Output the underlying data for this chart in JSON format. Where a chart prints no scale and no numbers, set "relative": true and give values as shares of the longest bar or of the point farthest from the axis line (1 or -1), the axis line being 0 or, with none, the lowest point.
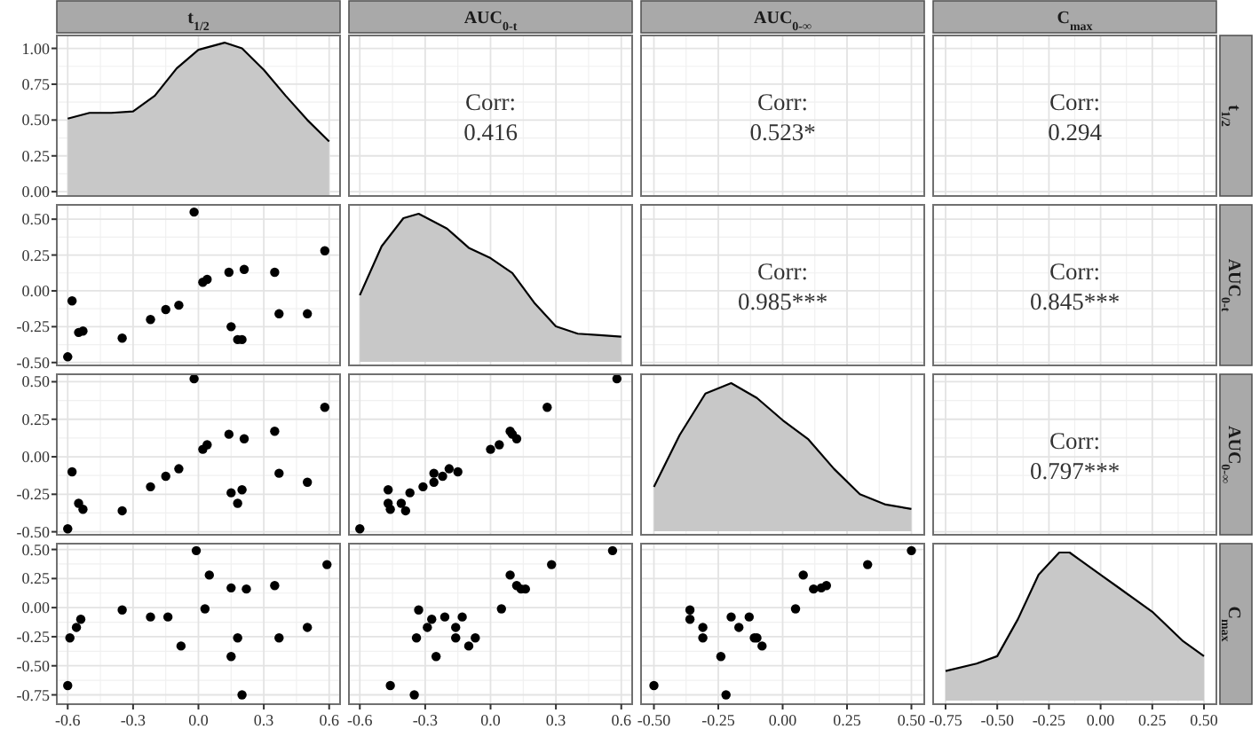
{
  "chart_data": [
    {
      "type": "area",
      "title": "t$_{1/2}$",
      "xlim": [
        -0.65,
        0.65
      ],
      "ylim": [
        -0.03,
        1.09
      ],
      "xticks": [
        -0.6,
        -0.3,
        0,
        0.3,
        0.6
      ],
      "yticks": [
        {
          "value": 0,
          "label": "0.00"
        },
        0.25,
        {
          "value": 0.5,
          "label": "0.50"
        },
        0.75,
        {
          "value": 1,
          "label": "1.00"
        }
      ],
      "tick_labels": "y",
      "grid": true,
      "series": [
        {
          "color": "#c8c8c8",
          "x": [
            -0.6,
            -0.5,
            -0.4,
            -0.3,
            -0.2,
            -0.1,
            0,
            0.12,
            0.2,
            0.3,
            0.4,
            0.5,
            0.6
          ],
          "values": [
            0.51,
            0.55,
            0.55,
            0.56,
            0.67,
            0.86,
            0.99,
            1.04,
            1.0,
            0.85,
            0.67,
            0.5,
            0.35
          ]
        }
      ]
    },
    {
      "type": "other",
      "title": "AUC$_{0-t}$",
      "annotations": [
        "Corr:",
        "0.416"
      ]
    },
    {
      "type": "other",
      "title": "AUC$_{0-∞}$",
      "annotations": [
        "Corr:",
        "0.523*"
      ]
    },
    {
      "type": "other",
      "title": "C$_{max}$",
      "y2label": "t$_{1/2}$",
      "annotations": [
        "Corr:",
        "0.294"
      ]
    },
    {
      "type": "scatter",
      "marker": "circle",
      "xlim": [
        -0.65,
        0.65
      ],
      "ylim": [
        -0.52,
        0.6
      ],
      "xticks": [
        -0.6,
        -0.3,
        0,
        0.3,
        0.6
      ],
      "yticks": [
        {
          "value": -0.5,
          "label": "-0.50"
        },
        -0.25,
        {
          "value": 0,
          "label": "0.00"
        },
        0.25,
        {
          "value": 0.5,
          "label": "0.50"
        }
      ],
      "tick_labels": "y",
      "grid": true,
      "series": [
        {
          "color": "#000000",
          "x": [
            -0.6,
            -0.58,
            -0.55,
            -0.53,
            -0.35,
            -0.22,
            -0.15,
            -0.09,
            -0.02,
            0.02,
            0.04,
            0.14,
            0.15,
            0.18,
            0.2,
            0.21,
            0.35,
            0.37,
            0.5,
            0.58
          ],
          "values": [
            -0.46,
            -0.07,
            -0.29,
            -0.28,
            -0.33,
            -0.2,
            -0.13,
            -0.1,
            0.55,
            0.06,
            0.08,
            0.13,
            -0.25,
            -0.34,
            -0.34,
            0.15,
            0.13,
            -0.16,
            -0.16,
            0.28
          ]
        }
      ]
    },
    {
      "type": "area",
      "relative": true,
      "xlim": [
        -0.65,
        0.65
      ],
      "xticks": [
        -0.6,
        -0.3,
        0,
        0.3,
        0.6
      ],
      "tick_labels": false,
      "grid": "x",
      "series": [
        {
          "color": "#c8c8c8",
          "x": [
            -0.6,
            -0.5,
            -0.4,
            -0.33,
            -0.2,
            -0.1,
            0,
            0.1,
            0.2,
            0.3,
            0.4,
            0.5,
            0.6
          ],
          "values": [
            0.45,
            0.78,
            0.97,
            1,
            0.9,
            0.77,
            0.7,
            0.6,
            0.4,
            0.24,
            0.19,
            0.18,
            0.17
          ]
        }
      ]
    },
    {
      "type": "other",
      "annotations": [
        "Corr:",
        "0.985***"
      ]
    },
    {
      "type": "other",
      "y2label": "AUC$_{0-t}$",
      "annotations": [
        "Corr:",
        "0.845***"
      ]
    },
    {
      "type": "scatter",
      "marker": "circle",
      "xlim": [
        -0.65,
        0.65
      ],
      "ylim": [
        -0.52,
        0.55
      ],
      "xticks": [
        -0.6,
        -0.3,
        0,
        0.3,
        0.6
      ],
      "yticks": [
        {
          "value": -0.5,
          "label": "-0.50"
        },
        -0.25,
        {
          "value": 0,
          "label": "0.00"
        },
        0.25,
        {
          "value": 0.5,
          "label": "0.50"
        }
      ],
      "tick_labels": "y",
      "grid": true,
      "series": [
        {
          "color": "#000000",
          "x": [
            -0.6,
            -0.58,
            -0.55,
            -0.53,
            -0.35,
            -0.22,
            -0.15,
            -0.09,
            -0.02,
            0.02,
            0.04,
            0.14,
            0.15,
            0.18,
            0.2,
            0.21,
            0.35,
            0.37,
            0.5,
            0.58
          ],
          "values": [
            -0.48,
            -0.1,
            -0.31,
            -0.35,
            -0.36,
            -0.2,
            -0.13,
            -0.08,
            0.52,
            0.05,
            0.08,
            0.15,
            -0.24,
            -0.31,
            -0.22,
            0.12,
            0.17,
            -0.11,
            -0.17,
            0.33
          ]
        }
      ]
    },
    {
      "type": "scatter",
      "marker": "circle",
      "xlim": [
        -0.65,
        0.65
      ],
      "ylim": [
        -0.52,
        0.55
      ],
      "xticks": [
        -0.6,
        -0.3,
        0,
        0.3,
        0.6
      ],
      "yticks": [
        -0.5,
        -0.25,
        0,
        0.25,
        0.5
      ],
      "tick_labels": false,
      "grid": true,
      "series": [
        {
          "color": "#000000",
          "x": [
            0.58,
            0.26,
            0,
            0.04,
            0.09,
            0.1,
            0.12,
            -0.15,
            -0.19,
            -0.22,
            -0.26,
            -0.26,
            -0.31,
            -0.37,
            -0.47,
            -0.47,
            -0.46,
            -0.41,
            -0.39,
            -0.6
          ],
          "values": [
            0.52,
            0.33,
            0.05,
            0.08,
            0.17,
            0.15,
            0.12,
            -0.1,
            -0.08,
            -0.13,
            -0.11,
            -0.17,
            -0.2,
            -0.24,
            -0.22,
            -0.31,
            -0.35,
            -0.31,
            -0.36,
            -0.48
          ]
        }
      ]
    },
    {
      "type": "area",
      "relative": true,
      "xlim": [
        -0.55,
        0.55
      ],
      "xticks": [
        -0.5,
        -0.25,
        0,
        0.25,
        0.5
      ],
      "tick_labels": false,
      "grid": "x",
      "series": [
        {
          "color": "#c8c8c8",
          "x": [
            -0.5,
            -0.4,
            -0.3,
            -0.2,
            -0.1,
            0,
            0.1,
            0.2,
            0.3,
            0.4,
            0.5
          ],
          "values": [
            0.3,
            0.65,
            0.93,
            1,
            0.9,
            0.75,
            0.62,
            0.42,
            0.25,
            0.18,
            0.15
          ]
        }
      ]
    },
    {
      "type": "other",
      "y2label": "AUC$_{0-∞}$",
      "annotations": [
        "Corr:",
        "0.797***"
      ]
    },
    {
      "type": "scatter",
      "marker": "circle",
      "xlim": [
        -0.65,
        0.65
      ],
      "ylim": [
        -0.83,
        0.55
      ],
      "xticks": [
        -0.6,
        -0.3,
        {
          "value": 0,
          "label": "0.0"
        },
        0.3,
        0.6
      ],
      "yticks": [
        -0.75,
        {
          "value": -0.5,
          "label": "-0.50"
        },
        -0.25,
        {
          "value": 0,
          "label": "0.00"
        },
        0.25,
        {
          "value": 0.5,
          "label": "0.50"
        }
      ],
      "grid": true,
      "series": [
        {
          "color": "#000000",
          "x": [
            -0.6,
            -0.59,
            -0.56,
            -0.54,
            -0.35,
            -0.22,
            -0.14,
            -0.08,
            -0.01,
            0.03,
            0.05,
            0.15,
            0.15,
            0.18,
            0.22,
            0.2,
            0.35,
            0.37,
            0.5,
            0.59
          ],
          "values": [
            -0.67,
            -0.26,
            -0.17,
            -0.1,
            -0.02,
            -0.08,
            -0.08,
            -0.33,
            0.49,
            -0.01,
            0.28,
            0.17,
            -0.42,
            -0.26,
            0.16,
            -0.75,
            0.19,
            -0.26,
            -0.17,
            0.37
          ]
        }
      ]
    },
    {
      "type": "scatter",
      "marker": "circle",
      "xlim": [
        -0.65,
        0.65
      ],
      "ylim": [
        -0.83,
        0.55
      ],
      "xticks": [
        -0.6,
        -0.3,
        {
          "value": 0,
          "label": "0.0"
        },
        0.3,
        0.6
      ],
      "yticks": [
        -0.75,
        -0.5,
        -0.25,
        0,
        0.25,
        0.5
      ],
      "tick_labels": "x",
      "grid": true,
      "series": [
        {
          "color": "#000000",
          "x": [
            0.56,
            0.28,
            0.09,
            0.12,
            0.14,
            0.16,
            0.05,
            -0.35,
            -0.46,
            -0.25,
            -0.34,
            -0.33,
            -0.29,
            -0.27,
            -0.21,
            -0.16,
            -0.13,
            -0.1,
            -0.07,
            -0.16
          ],
          "values": [
            0.49,
            0.37,
            0.28,
            0.19,
            0.16,
            0.16,
            -0.01,
            -0.75,
            -0.67,
            -0.42,
            -0.26,
            -0.02,
            -0.17,
            -0.1,
            -0.08,
            -0.26,
            -0.08,
            -0.33,
            -0.26,
            -0.17
          ]
        }
      ]
    },
    {
      "type": "scatter",
      "marker": "circle",
      "xlim": [
        -0.55,
        0.55
      ],
      "ylim": [
        -0.83,
        0.55
      ],
      "xticks": [
        {
          "value": -0.5,
          "label": "-0.50"
        },
        -0.25,
        {
          "value": 0,
          "label": "0.00"
        },
        0.25,
        {
          "value": 0.5,
          "label": "0.50"
        }
      ],
      "yticks": [
        -0.75,
        -0.5,
        -0.25,
        0,
        0.25,
        0.5
      ],
      "tick_labels": "x",
      "grid": true,
      "series": [
        {
          "color": "#000000",
          "x": [
            0.5,
            0.33,
            0.08,
            0.12,
            0.15,
            0.17,
            0.05,
            -0.5,
            -0.22,
            -0.24,
            -0.36,
            -0.36,
            -0.31,
            -0.31,
            -0.2,
            -0.17,
            -0.13,
            -0.11,
            -0.1,
            -0.08
          ],
          "values": [
            0.49,
            0.37,
            0.28,
            0.16,
            0.17,
            0.19,
            -0.01,
            -0.67,
            -0.75,
            -0.42,
            -0.02,
            -0.1,
            -0.17,
            -0.26,
            -0.08,
            -0.17,
            -0.08,
            -0.26,
            -0.26,
            -0.33
          ]
        }
      ]
    },
    {
      "type": "area",
      "relative": true,
      "y2label": "C$_{max}$",
      "xlim": [
        -0.81,
        0.56
      ],
      "xticks": [
        -0.75,
        {
          "value": -0.5,
          "label": "-0.50"
        },
        -0.25,
        {
          "value": 0,
          "label": "0.00"
        },
        0.25,
        {
          "value": 0.5,
          "label": "0.50"
        }
      ],
      "tick_labels": "x",
      "grid": "x",
      "series": [
        {
          "color": "#c8c8c8",
          "x": [
            -0.75,
            -0.6,
            -0.5,
            -0.4,
            -0.3,
            -0.2,
            -0.15,
            -0.1,
            0,
            0.1,
            0.25,
            0.4,
            0.5
          ],
          "values": [
            0.2,
            0.25,
            0.3,
            0.55,
            0.85,
            1,
            1,
            0.95,
            0.85,
            0.75,
            0.6,
            0.4,
            0.3
          ]
        }
      ]
    }
  ]
}
